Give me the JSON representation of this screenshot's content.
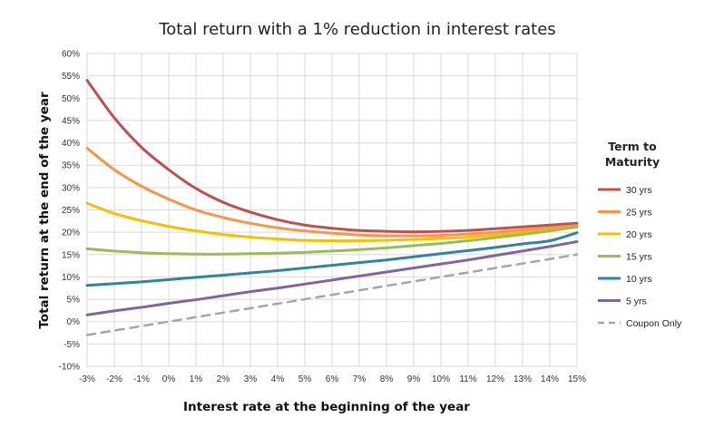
{
  "chart_data": {
    "type": "line",
    "title": "Total return with a 1% reduction in interest rates",
    "xlabel": "Interest rate at the beginning of the year",
    "ylabel": "Total return at the end of the year",
    "x": [
      -3,
      -2,
      -1,
      0,
      1,
      2,
      3,
      4,
      5,
      6,
      7,
      8,
      9,
      10,
      11,
      12,
      13,
      14,
      15
    ],
    "x_tick_labels": [
      "-3%",
      "-2%",
      "-1%",
      "0%",
      "1%",
      "2%",
      "3%",
      "4%",
      "5%",
      "6%",
      "7%",
      "8%",
      "9%",
      "10%",
      "11%",
      "12%",
      "13%",
      "14%",
      "15%"
    ],
    "ylim": [
      -10,
      60
    ],
    "y_ticks": [
      -10,
      -5,
      0,
      5,
      10,
      15,
      20,
      25,
      30,
      35,
      40,
      45,
      50,
      55,
      60
    ],
    "y_tick_labels": [
      "-10%",
      "-5%",
      "0%",
      "5%",
      "10%",
      "15%",
      "20%",
      "25%",
      "30%",
      "35%",
      "40%",
      "45%",
      "50%",
      "55%",
      "60%"
    ],
    "grid": true,
    "legend": {
      "title_line1": "Term to",
      "title_line2": "Maturity",
      "position": "right"
    },
    "series": [
      {
        "name": "30 yrs",
        "color": "#C0504D",
        "dash": false,
        "values": [
          54.0,
          45.6,
          39.0,
          34.0,
          29.8,
          26.7,
          24.5,
          22.8,
          21.6,
          20.9,
          20.4,
          20.2,
          20.1,
          20.2,
          20.4,
          20.8,
          21.2,
          21.6,
          22.0
        ]
      },
      {
        "name": "25 yrs",
        "color": "#F79646",
        "dash": false,
        "values": [
          38.8,
          34.0,
          30.3,
          27.4,
          25.0,
          23.3,
          22.0,
          21.0,
          20.3,
          19.8,
          19.4,
          19.2,
          19.2,
          19.3,
          19.6,
          20.0,
          20.5,
          21.0,
          21.5
        ]
      },
      {
        "name": "20 yrs",
        "color": "#F5C000",
        "dash": false,
        "values": [
          26.5,
          24.2,
          22.6,
          21.3,
          20.3,
          19.5,
          18.9,
          18.5,
          18.2,
          18.1,
          18.1,
          18.2,
          18.4,
          18.6,
          18.9,
          19.4,
          19.9,
          20.5,
          21.2
        ]
      },
      {
        "name": "15 yrs",
        "color": "#9BBB59",
        "dash": false,
        "values": [
          16.3,
          15.8,
          15.4,
          15.2,
          15.1,
          15.1,
          15.2,
          15.3,
          15.5,
          15.8,
          16.1,
          16.5,
          17.0,
          17.5,
          18.1,
          18.8,
          19.5,
          20.3,
          21.2
        ]
      },
      {
        "name": "10 yrs",
        "color": "#31849B",
        "dash": false,
        "values": [
          8.1,
          8.5,
          8.9,
          9.4,
          9.9,
          10.4,
          10.9,
          11.4,
          12.0,
          12.6,
          13.2,
          13.8,
          14.5,
          15.2,
          15.9,
          16.6,
          17.4,
          18.1,
          19.9
        ]
      },
      {
        "name": "5 yrs",
        "color": "#8064A2",
        "dash": false,
        "values": [
          1.5,
          2.4,
          3.2,
          4.1,
          4.9,
          5.8,
          6.7,
          7.5,
          8.4,
          9.3,
          10.2,
          11.1,
          12.0,
          12.9,
          13.8,
          14.8,
          15.8,
          16.8,
          17.9
        ]
      },
      {
        "name": "Coupon Only",
        "color": "#A6A6A6",
        "dash": true,
        "values": [
          -3,
          -2,
          -1,
          0,
          1,
          2,
          3,
          4,
          5,
          6,
          7,
          8,
          9,
          10,
          11,
          12,
          13,
          14,
          15
        ]
      }
    ]
  }
}
